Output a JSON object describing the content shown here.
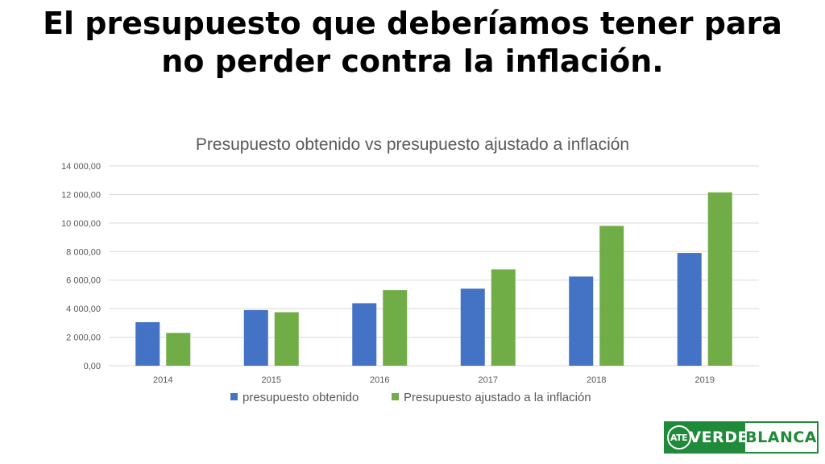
{
  "slide": {
    "title": "El presupuesto que deberíamos tener para no perder contra la inflación."
  },
  "logo": {
    "badge_text": "ATE",
    "word1": "VERDE",
    "word2": "BLANCA"
  },
  "colors": {
    "series1": "#4472c4",
    "series2": "#70ad47",
    "grid": "#d9d9d9",
    "text": "#595959",
    "logo_green": "#1f8a3a"
  },
  "chart_data": {
    "type": "bar",
    "title": "Presupuesto obtenido vs presupuesto ajustado a inflación",
    "xlabel": "",
    "ylabel": "",
    "categories": [
      "2014",
      "2015",
      "2016",
      "2017",
      "2018",
      "2019"
    ],
    "series": [
      {
        "name": "presupuesto obtenido",
        "values": [
          3050,
          3900,
          4380,
          5400,
          6250,
          7900
        ]
      },
      {
        "name": "Presupuesto ajustado a la inflación",
        "values": [
          2300,
          3750,
          5300,
          6750,
          9800,
          12150
        ]
      }
    ],
    "ylim": [
      0,
      14000
    ],
    "yticks": [
      "0,00",
      "2 000,00",
      "4 000,00",
      "6 000,00",
      "8 000,00",
      "10 000,00",
      "12 000,00",
      "14 000,00"
    ],
    "grid": true,
    "legend_position": "bottom"
  }
}
